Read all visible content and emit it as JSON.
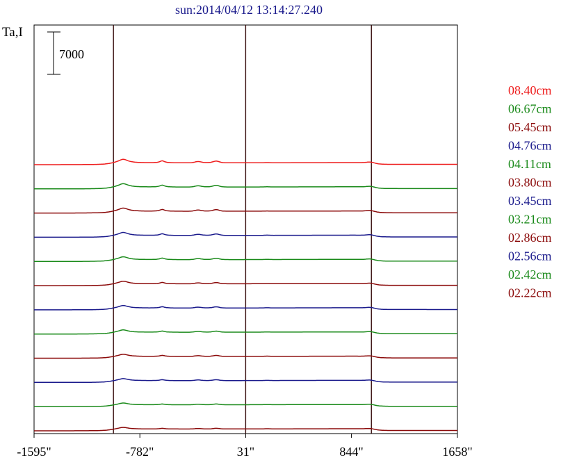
{
  "title": "sun:2014/04/12 13:14:27.240",
  "ylabel": "Ta,I",
  "scale_bar": {
    "label": "7000",
    "value": 7000
  },
  "chart_data": {
    "type": "line",
    "title": "sun:2014/04/12 13:14:27.240",
    "ylabel": "Ta,I",
    "xlabel": "",
    "x_ticks": [
      {
        "label": "-1595\"",
        "value": -1595
      },
      {
        "label": "-782\"",
        "value": -782
      },
      {
        "label": "31\"",
        "value": 31
      },
      {
        "label": "844\"",
        "value": 844
      },
      {
        "label": "1658\"",
        "value": 1658
      }
    ],
    "xlim": [
      -1595,
      1658
    ],
    "vertical_markers": [
      -985,
      31,
      997
    ],
    "series": [
      {
        "name": "08.40cm",
        "color": "#ee1c1c",
        "offset_rank": 11
      },
      {
        "name": "06.67cm",
        "color": "#1a8a1a",
        "offset_rank": 10
      },
      {
        "name": "05.45cm",
        "color": "#8b0a0a",
        "offset_rank": 9
      },
      {
        "name": "04.76cm",
        "color": "#1a1a8c",
        "offset_rank": 8
      },
      {
        "name": "04.11cm",
        "color": "#1a8a1a",
        "offset_rank": 7
      },
      {
        "name": "03.80cm",
        "color": "#8b0a0a",
        "offset_rank": 6
      },
      {
        "name": "03.45cm",
        "color": "#1a1a8c",
        "offset_rank": 5
      },
      {
        "name": "03.21cm",
        "color": "#1a8a1a",
        "offset_rank": 4
      },
      {
        "name": "02.86cm",
        "color": "#8b0a0a",
        "offset_rank": 3
      },
      {
        "name": "02.56cm",
        "color": "#1a1a8c",
        "offset_rank": 2
      },
      {
        "name": "02.42cm",
        "color": "#1a8a1a",
        "offset_rank": 1
      },
      {
        "name": "02.22cm",
        "color": "#8b0a0a",
        "offset_rank": 0
      }
    ]
  }
}
